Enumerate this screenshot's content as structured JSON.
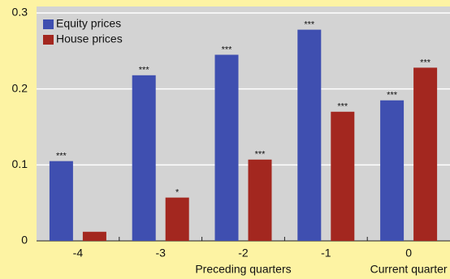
{
  "chart_data": {
    "type": "bar",
    "categories": [
      "-4",
      "-3",
      "-2",
      "-1",
      "0"
    ],
    "series": [
      {
        "name": "Equity prices",
        "color": "#3f4fb0",
        "values": [
          0.105,
          0.218,
          0.245,
          0.278,
          0.185
        ],
        "annotations": [
          "***",
          "***",
          "***",
          "***",
          "***"
        ]
      },
      {
        "name": "House prices",
        "color": "#a3271f",
        "values": [
          0.012,
          0.057,
          0.107,
          0.17,
          0.228
        ],
        "annotations": [
          null,
          "*",
          "***",
          "***",
          "***"
        ]
      }
    ],
    "x_group_labels": [
      "Preceding quarters",
      "Current quarter"
    ],
    "ylim": [
      0,
      0.3
    ],
    "yticks": [
      0,
      0.1,
      0.2,
      0.3
    ],
    "grid": true,
    "legend": "top-left"
  }
}
